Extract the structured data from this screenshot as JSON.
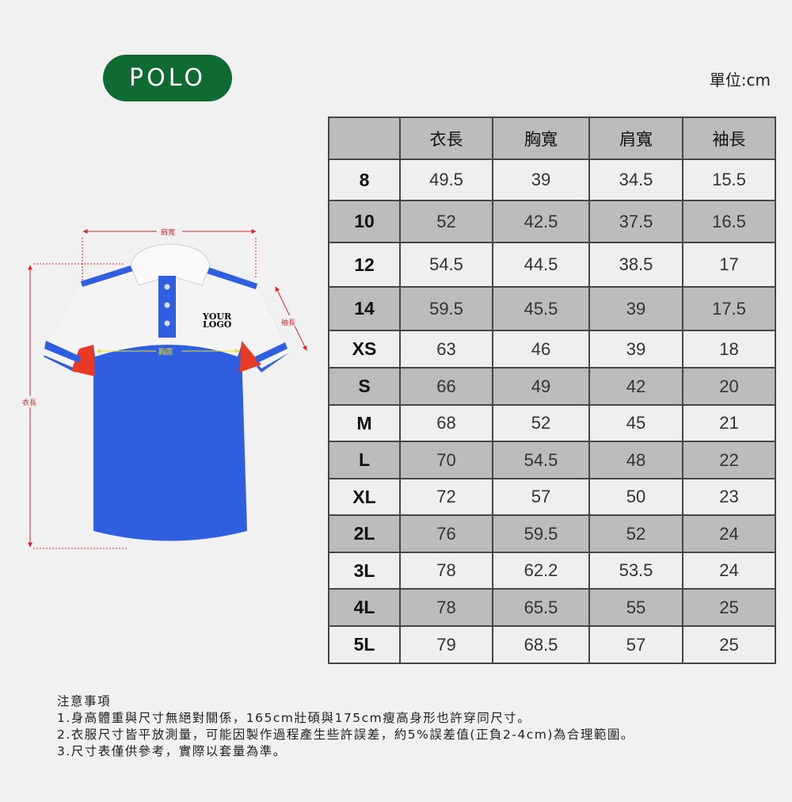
{
  "badge": "POLO",
  "unit": "單位:cm",
  "diagram": {
    "shoulder": "肩寬",
    "chest": "胸圍",
    "sleeve": "袖長",
    "length": "衣長",
    "logo_line1": "YOUR",
    "logo_line2": "LOGO"
  },
  "colors": {
    "badge": "#0f6b31",
    "row_shaded": "#bcbcbc",
    "row_light": "#efefef",
    "shirt_blue": "#2f5fe0",
    "shirt_red": "#e83a25",
    "measure_red": "#d9262c",
    "measure_yellow": "#e6e02a"
  },
  "table": {
    "headers": [
      "",
      "衣長",
      "胸寬",
      "肩寬",
      "袖長"
    ],
    "rows": [
      [
        "8",
        "49.5",
        "39",
        "34.5",
        "15.5"
      ],
      [
        "10",
        "52",
        "42.5",
        "37.5",
        "16.5"
      ],
      [
        "12",
        "54.5",
        "44.5",
        "38.5",
        "17"
      ],
      [
        "14",
        "59.5",
        "45.5",
        "39",
        "17.5"
      ],
      [
        "XS",
        "63",
        "46",
        "39",
        "18"
      ],
      [
        "S",
        "66",
        "49",
        "42",
        "20"
      ],
      [
        "M",
        "68",
        "52",
        "45",
        "21"
      ],
      [
        "L",
        "70",
        "54.5",
        "48",
        "22"
      ],
      [
        "XL",
        "72",
        "57",
        "50",
        "23"
      ],
      [
        "2L",
        "76",
        "59.5",
        "52",
        "24"
      ],
      [
        "3L",
        "78",
        "62.2",
        "53.5",
        "24"
      ],
      [
        "4L",
        "78",
        "65.5",
        "55",
        "25"
      ],
      [
        "5L",
        "79",
        "68.5",
        "57",
        "25"
      ]
    ]
  },
  "notes": {
    "title": "注意事項",
    "items": [
      "1.身高體重與尺寸無絕對關係，165cm壯碩與175cm瘦高身形也許穿同尺寸。",
      "2.衣服尺寸皆平放測量，可能因製作過程產生些許誤差，約5%誤差值(正負2-4cm)為合理範圍。",
      "3.尺寸表僅供參考，實際以套量為準。"
    ]
  }
}
